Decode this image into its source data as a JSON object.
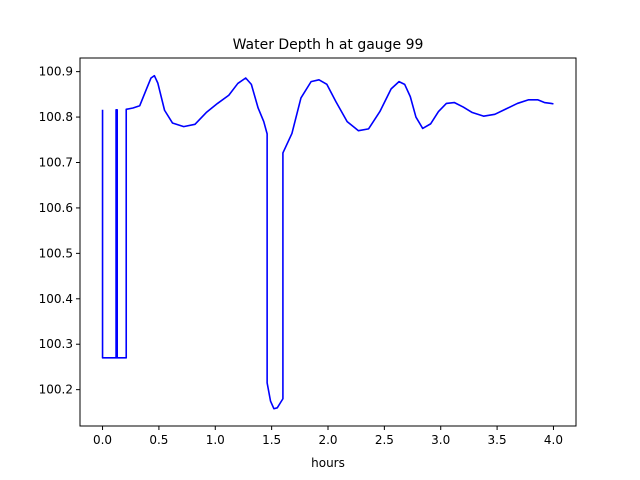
{
  "chart_data": {
    "type": "line",
    "title": "Water Depth h at gauge 99",
    "xlabel": "hours",
    "ylabel": "",
    "xlim": [
      -0.2,
      4.2
    ],
    "ylim": [
      100.12,
      100.93
    ],
    "xticks": [
      0.0,
      0.5,
      1.0,
      1.5,
      2.0,
      2.5,
      3.0,
      3.5,
      4.0
    ],
    "xtick_labels": [
      "0.0",
      "0.5",
      "1.0",
      "1.5",
      "2.0",
      "2.5",
      "3.0",
      "3.5",
      "4.0"
    ],
    "yticks": [
      100.2,
      100.3,
      100.4,
      100.5,
      100.6,
      100.7,
      100.8,
      100.9
    ],
    "ytick_labels": [
      "100.2",
      "100.3",
      "100.4",
      "100.5",
      "100.6",
      "100.7",
      "100.8",
      "100.9"
    ],
    "grid": false,
    "series": [
      {
        "color": "#0000ff",
        "x": [
          0.0,
          0.0,
          0.12,
          0.12,
          0.13,
          0.13,
          0.21,
          0.21,
          0.27,
          0.33,
          0.39,
          0.43,
          0.46,
          0.49,
          0.55,
          0.62,
          0.72,
          0.82,
          0.92,
          1.02,
          1.12,
          1.2,
          1.27,
          1.32,
          1.38,
          1.43,
          1.46,
          1.46,
          1.49,
          1.52,
          1.55,
          1.58,
          1.6,
          1.6,
          1.68,
          1.76,
          1.85,
          1.92,
          1.99,
          2.07,
          2.17,
          2.27,
          2.36,
          2.46,
          2.56,
          2.63,
          2.68,
          2.73,
          2.78,
          2.84,
          2.91,
          2.98,
          3.05,
          3.12,
          3.2,
          3.28,
          3.38,
          3.48,
          3.58,
          3.68,
          3.78,
          3.86,
          3.92,
          3.98,
          4.0
        ],
        "y": [
          100.816,
          100.27,
          100.27,
          100.816,
          100.816,
          100.27,
          100.27,
          100.817,
          100.82,
          100.825,
          100.862,
          100.886,
          100.891,
          100.875,
          100.815,
          100.787,
          100.779,
          100.784,
          100.81,
          100.83,
          100.848,
          100.874,
          100.886,
          100.872,
          100.82,
          100.79,
          100.763,
          100.215,
          100.175,
          100.158,
          100.16,
          100.172,
          100.18,
          100.721,
          100.764,
          100.842,
          100.878,
          100.882,
          100.872,
          100.834,
          100.79,
          100.77,
          100.774,
          100.812,
          100.862,
          100.878,
          100.872,
          100.845,
          100.8,
          100.775,
          100.785,
          100.812,
          100.83,
          100.832,
          100.822,
          100.81,
          100.802,
          100.806,
          100.818,
          100.83,
          100.838,
          100.838,
          100.832,
          100.83,
          100.829
        ]
      }
    ]
  }
}
